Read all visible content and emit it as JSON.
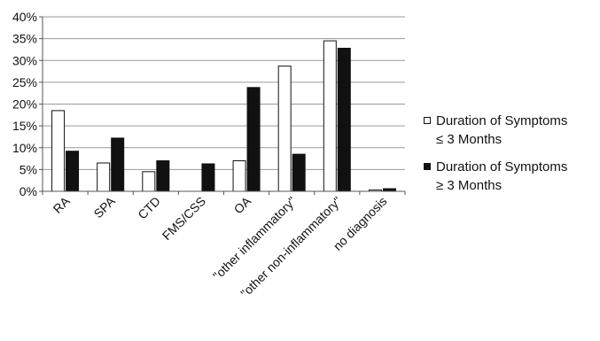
{
  "chart_data": {
    "type": "bar",
    "title": "",
    "xlabel": "",
    "ylabel": "",
    "ylim": [
      0,
      40
    ],
    "y_ticks": [
      "0%",
      "5%",
      "10%",
      "15%",
      "20%",
      "25%",
      "30%",
      "35%",
      "40%"
    ],
    "grid": true,
    "legend_position": "right",
    "categories": [
      "RA",
      "SPA",
      "CTD",
      "FMS/CSS",
      "OA",
      "\"other inflammatory\"",
      "\"other non-inflammatory\"",
      "no diagnosis"
    ],
    "series": [
      {
        "name": "Duration of Symptoms ≤ 3 Months",
        "name_lines": [
          "Duration of Symptoms",
          "≤ 3 Months"
        ],
        "color": "#ffffff",
        "values": [
          18.5,
          6.5,
          4.5,
          0,
          7.0,
          28.7,
          34.5,
          0.3
        ]
      },
      {
        "name": "Duration of Symptoms ≥ 3 Months",
        "name_lines": [
          "Duration of Symptoms",
          "≥ 3 Months"
        ],
        "color": "#111111",
        "values": [
          9.2,
          12.2,
          7.0,
          6.3,
          23.8,
          8.5,
          32.8,
          0.6
        ]
      }
    ]
  }
}
